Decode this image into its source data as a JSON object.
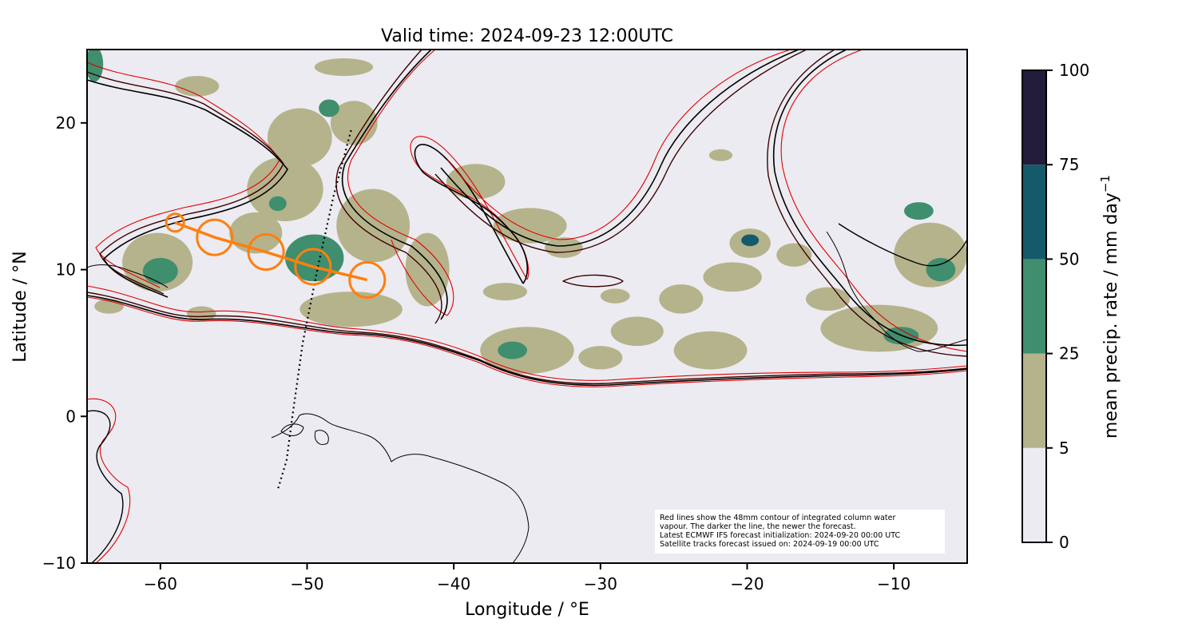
{
  "chart_data": {
    "type": "map",
    "title": "Valid time: 2024-09-23 12:00UTC",
    "xlabel": "Longitude / °E",
    "ylabel": "Latitude / °N",
    "xlim": [
      -65,
      -5
    ],
    "ylim": [
      -10,
      25
    ],
    "xticks": [
      -60,
      -50,
      -40,
      -30,
      -20,
      -10
    ],
    "yticks": [
      -10,
      0,
      10,
      20
    ],
    "xtick_labels": [
      "−60",
      "−50",
      "−40",
      "−30",
      "−20",
      "−10"
    ],
    "ytick_labels": [
      "−10",
      "0",
      "10",
      "20"
    ],
    "colorbar": {
      "label": "mean precip. rate / mm day",
      "label_sup": "−1",
      "levels": [
        0,
        5,
        25,
        50,
        75,
        100
      ],
      "level_labels": [
        "0",
        "5",
        "25",
        "50",
        "75",
        "100"
      ],
      "colors": [
        "#ecebf1",
        "#b5b38c",
        "#3f8e6e",
        "#145a6b",
        "#221c3a"
      ]
    },
    "background_color": "#ecebf1",
    "annotation_lines": [
      "Red lines show the 48mm contour of integrated column water",
      "vapour. The darker the line, the newer the forecast.",
      "Latest ECMWF IFS forecast initialization: 2024-09-20 00:00 UTC",
      "Satellite tracks forecast issued on: 2024-09-19 00:00 UTC"
    ],
    "storm_track": {
      "color": "#ff7f0e",
      "points": [
        {
          "lon": -59.0,
          "lat": 13.2,
          "r": 0.6
        },
        {
          "lon": -56.3,
          "lat": 12.2,
          "r": 1.2
        },
        {
          "lon": -52.8,
          "lat": 11.2,
          "r": 1.2
        },
        {
          "lon": -49.6,
          "lat": 10.2,
          "r": 1.2
        },
        {
          "lon": -45.9,
          "lat": 9.3,
          "r": 1.2
        }
      ]
    },
    "satellite_track": {
      "color": "#000000",
      "points": [
        [
          -47.0,
          19.5
        ],
        [
          -48.2,
          15.0
        ],
        [
          -49.3,
          10.0
        ],
        [
          -50.3,
          5.0
        ],
        [
          -51.0,
          0.0
        ],
        [
          -51.4,
          -3.0
        ],
        [
          -52.0,
          -5.0
        ]
      ]
    },
    "precip_cells": [
      {
        "lon": -57.5,
        "lat": 22.5,
        "rx": 1.5,
        "ry": 0.7,
        "level": 1
      },
      {
        "lon": -47.5,
        "lat": 23.8,
        "rx": 2.0,
        "ry": 0.6,
        "level": 1
      },
      {
        "lon": -50.5,
        "lat": 19.0,
        "rx": 2.2,
        "ry": 2.0,
        "level": 1
      },
      {
        "lon": -46.8,
        "lat": 20.0,
        "rx": 1.6,
        "ry": 1.5,
        "level": 1
      },
      {
        "lon": -51.5,
        "lat": 15.5,
        "rx": 2.6,
        "ry": 2.2,
        "level": 1
      },
      {
        "lon": -45.5,
        "lat": 13.0,
        "rx": 2.5,
        "ry": 2.5,
        "level": 1
      },
      {
        "lon": -41.8,
        "lat": 10.0,
        "rx": 1.5,
        "ry": 2.5,
        "level": 1
      },
      {
        "lon": -49.5,
        "lat": 10.8,
        "rx": 2.0,
        "ry": 1.6,
        "level": 2
      },
      {
        "lon": -53.5,
        "lat": 12.5,
        "rx": 1.8,
        "ry": 1.4,
        "level": 1
      },
      {
        "lon": -60.2,
        "lat": 10.5,
        "rx": 2.4,
        "ry": 2.0,
        "level": 1
      },
      {
        "lon": -60.0,
        "lat": 9.9,
        "rx": 1.2,
        "ry": 0.9,
        "level": 2
      },
      {
        "lon": -47.0,
        "lat": 7.3,
        "rx": 3.5,
        "ry": 1.2,
        "level": 1
      },
      {
        "lon": -57.2,
        "lat": 7.0,
        "rx": 1.0,
        "ry": 0.5,
        "level": 1
      },
      {
        "lon": -38.5,
        "lat": 16.0,
        "rx": 2.0,
        "ry": 1.2,
        "level": 1
      },
      {
        "lon": -34.8,
        "lat": 13.0,
        "rx": 2.5,
        "ry": 1.2,
        "level": 1
      },
      {
        "lon": -32.5,
        "lat": 11.5,
        "rx": 1.3,
        "ry": 0.7,
        "level": 1
      },
      {
        "lon": -35.0,
        "lat": 4.5,
        "rx": 3.2,
        "ry": 1.6,
        "level": 1
      },
      {
        "lon": -36.0,
        "lat": 4.5,
        "rx": 1.0,
        "ry": 0.6,
        "level": 2
      },
      {
        "lon": -30.0,
        "lat": 4.0,
        "rx": 1.5,
        "ry": 0.8,
        "level": 1
      },
      {
        "lon": -27.5,
        "lat": 5.8,
        "rx": 1.8,
        "ry": 1.0,
        "level": 1
      },
      {
        "lon": -22.5,
        "lat": 4.5,
        "rx": 2.5,
        "ry": 1.3,
        "level": 1
      },
      {
        "lon": -24.5,
        "lat": 8.0,
        "rx": 1.5,
        "ry": 1.0,
        "level": 1
      },
      {
        "lon": -19.8,
        "lat": 11.8,
        "rx": 1.4,
        "ry": 1.0,
        "level": 1
      },
      {
        "lon": -19.8,
        "lat": 12.0,
        "rx": 0.6,
        "ry": 0.4,
        "level": 3
      },
      {
        "lon": -21.0,
        "lat": 9.5,
        "rx": 2.0,
        "ry": 1.0,
        "level": 1
      },
      {
        "lon": -16.8,
        "lat": 11.0,
        "rx": 1.2,
        "ry": 0.8,
        "level": 1
      },
      {
        "lon": -14.5,
        "lat": 8.0,
        "rx": 1.5,
        "ry": 0.8,
        "level": 1
      },
      {
        "lon": -7.5,
        "lat": 11.0,
        "rx": 2.5,
        "ry": 2.2,
        "level": 1
      },
      {
        "lon": -6.8,
        "lat": 10.0,
        "rx": 1.0,
        "ry": 0.8,
        "level": 2
      },
      {
        "lon": -8.3,
        "lat": 14.0,
        "rx": 1.0,
        "ry": 0.6,
        "level": 2
      },
      {
        "lon": -11.0,
        "lat": 6.0,
        "rx": 4.0,
        "ry": 1.6,
        "level": 1
      },
      {
        "lon": -9.5,
        "lat": 5.5,
        "rx": 1.2,
        "ry": 0.6,
        "level": 2
      },
      {
        "lon": -21.8,
        "lat": 17.8,
        "rx": 0.8,
        "ry": 0.4,
        "level": 1
      },
      {
        "lon": -36.5,
        "lat": 8.5,
        "rx": 1.5,
        "ry": 0.6,
        "level": 1
      },
      {
        "lon": -29.0,
        "lat": 8.2,
        "rx": 1.0,
        "ry": 0.5,
        "level": 1
      },
      {
        "lon": -48.5,
        "lat": 21.0,
        "rx": 0.7,
        "ry": 0.6,
        "level": 2
      },
      {
        "lon": -52.0,
        "lat": 14.5,
        "rx": 0.6,
        "ry": 0.5,
        "level": 2
      },
      {
        "lon": -63.5,
        "lat": 7.5,
        "rx": 1.0,
        "ry": 0.5,
        "level": 1
      },
      {
        "lon": -64.5,
        "lat": 24.0,
        "rx": 0.6,
        "ry": 1.2,
        "level": 2
      }
    ]
  }
}
